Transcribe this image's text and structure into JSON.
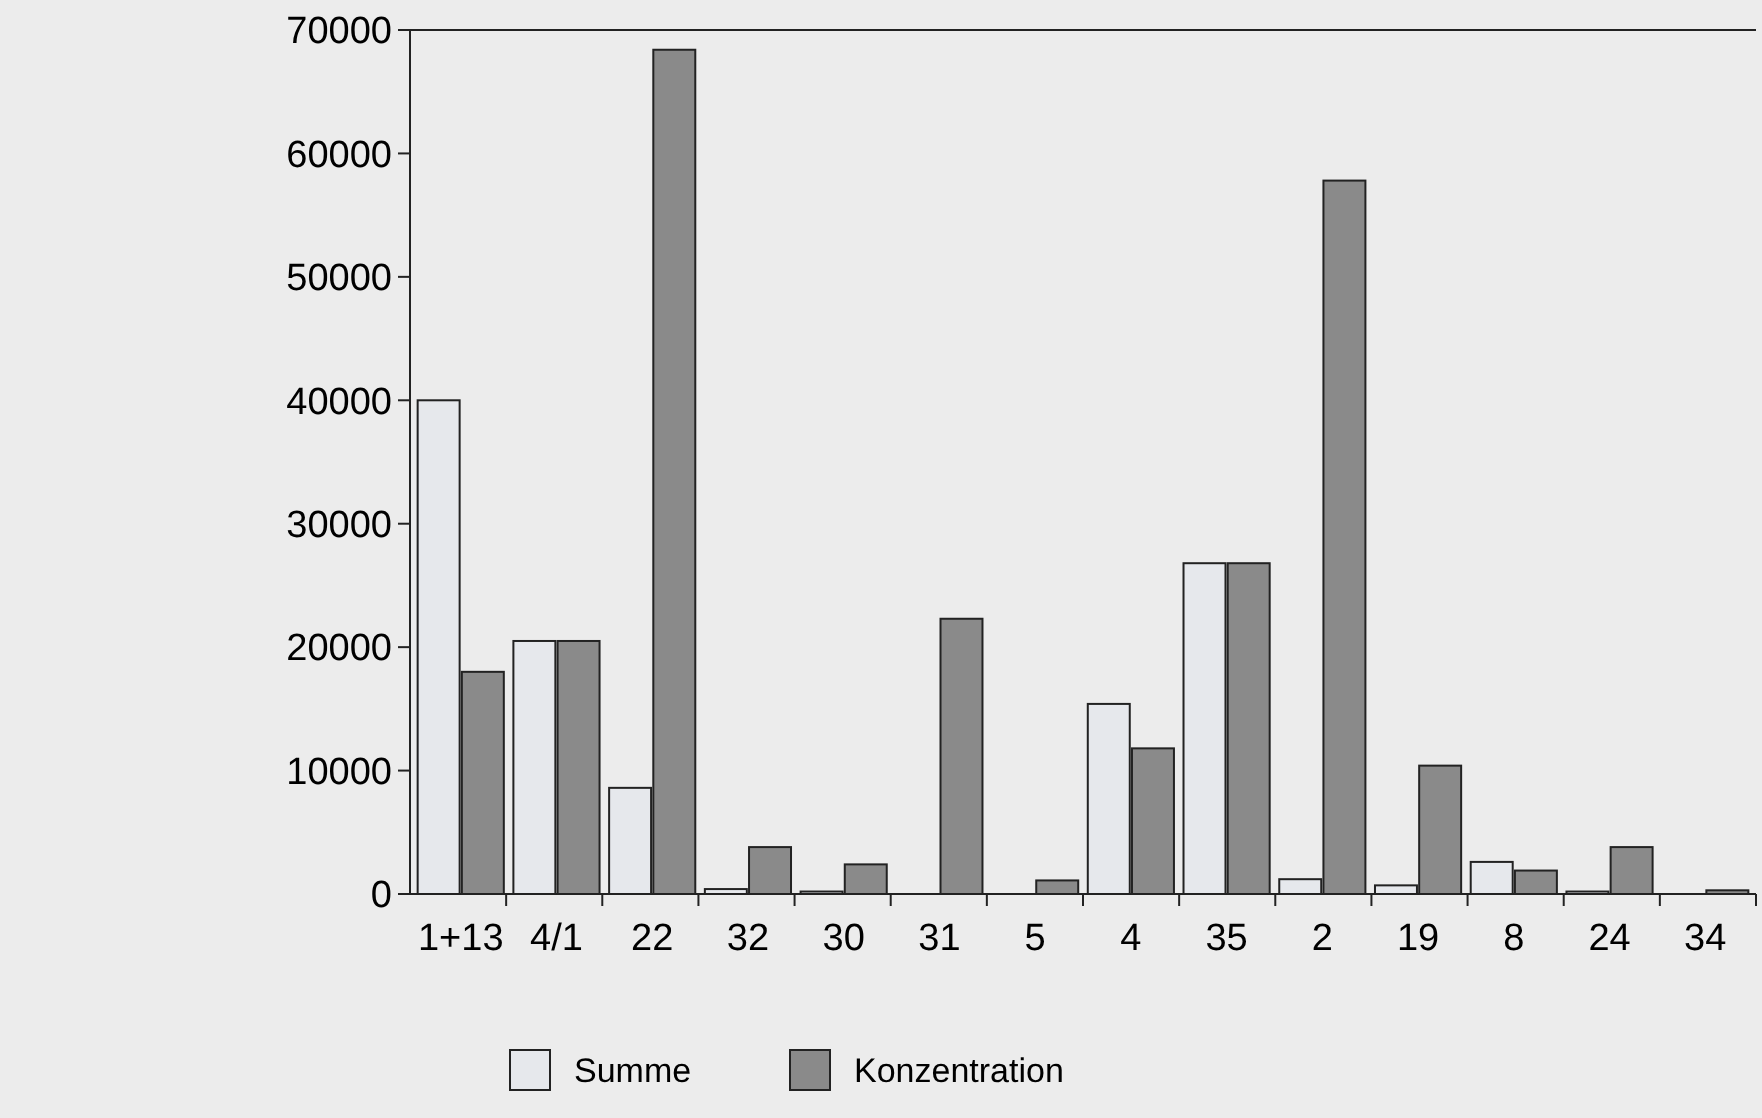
{
  "chart_data": {
    "type": "bar",
    "categories": [
      "1+13",
      "4/1",
      "22",
      "32",
      "30",
      "31",
      "5",
      "4",
      "35",
      "2",
      "19",
      "8",
      "24",
      "34"
    ],
    "series": [
      {
        "name": "Summe",
        "color": "#e6e8ec",
        "values": [
          40000,
          20500,
          8600,
          400,
          200,
          0,
          0,
          15400,
          26800,
          1200,
          700,
          2600,
          200,
          0
        ]
      },
      {
        "name": "Konzentration",
        "color": "#8a8a8a",
        "values": [
          18000,
          20500,
          68400,
          3800,
          2400,
          22300,
          1100,
          11800,
          26800,
          57800,
          10400,
          1900,
          3800,
          300
        ]
      }
    ],
    "ylim": [
      0,
      70000
    ],
    "yticks": [
      0,
      10000,
      20000,
      30000,
      40000,
      50000,
      60000,
      70000
    ],
    "grid": false,
    "legend": "bottom"
  }
}
